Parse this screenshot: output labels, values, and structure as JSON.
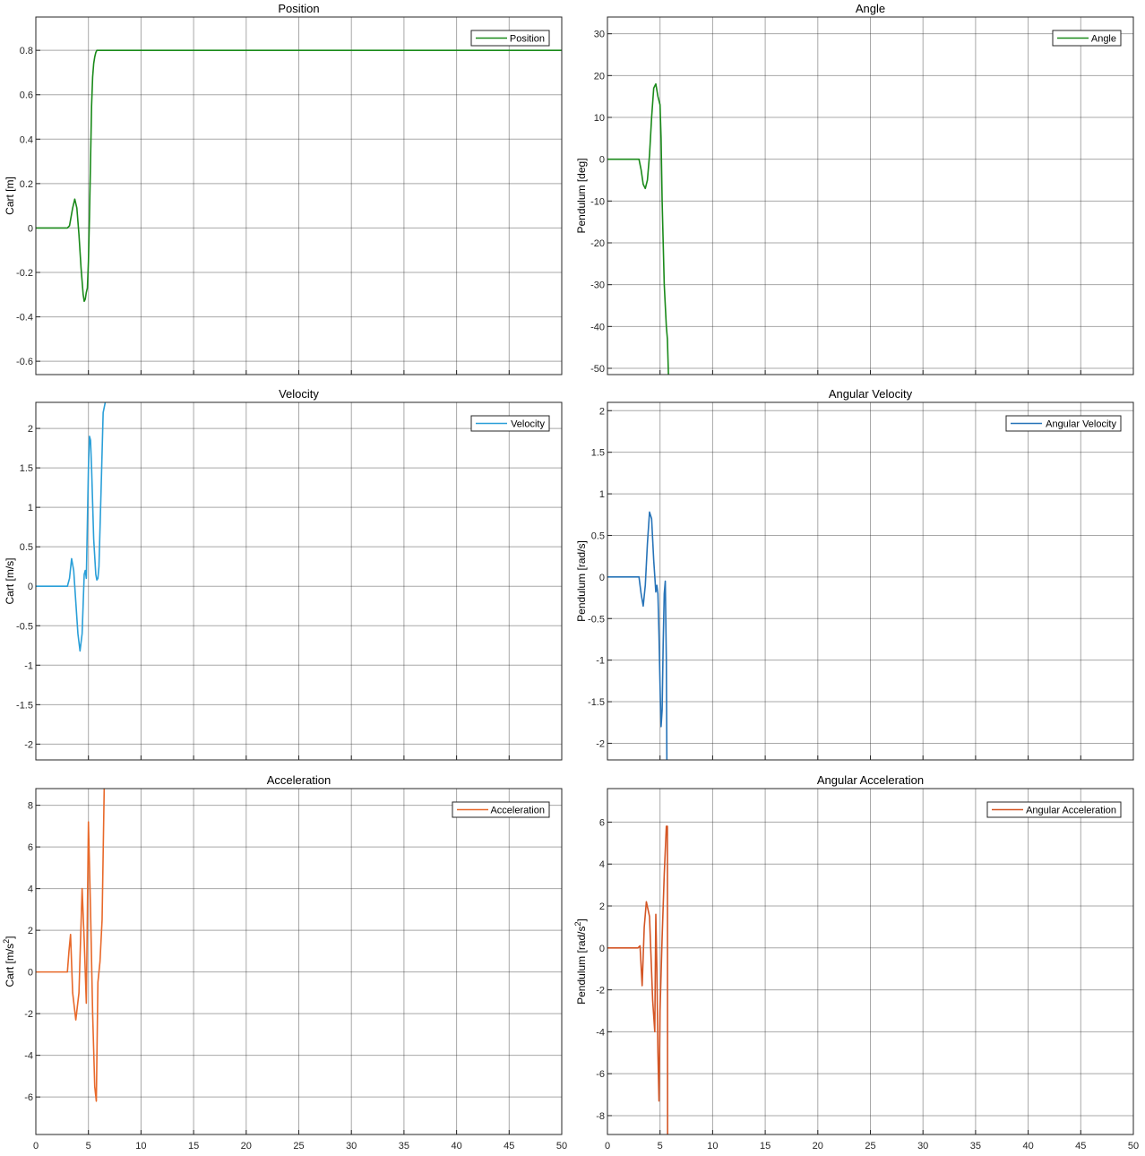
{
  "chart_data": [
    {
      "type": "line",
      "title": "Position",
      "ylabel": "Cart [m]",
      "ylabel_sup": "",
      "xlim": [
        0,
        50
      ],
      "ylim": [
        -0.66,
        0.95
      ],
      "xticks": [
        0,
        5,
        10,
        15,
        20,
        25,
        30,
        35,
        40,
        45,
        50
      ],
      "yticks": [
        -0.6,
        -0.4,
        -0.2,
        0,
        0.2,
        0.4,
        0.6,
        0.8
      ],
      "ytick_labels": [
        "-0.6",
        "-0.4",
        "-0.2",
        "0",
        "0.2",
        "0.4",
        "0.6",
        "0.8"
      ],
      "grid": true,
      "legend": "top-right",
      "series": [
        {
          "name": "Position",
          "color": "#1a8a1a",
          "x": [
            0,
            3.0,
            3.2,
            3.5,
            3.7,
            3.9,
            4.1,
            4.3,
            4.5,
            4.6,
            4.7,
            4.8,
            4.9,
            5.0,
            5.1,
            5.2,
            5.3,
            5.4,
            5.5,
            5.6,
            5.7,
            5.8,
            6.0,
            50
          ],
          "y": [
            0,
            0,
            0.01,
            0.09,
            0.13,
            0.09,
            -0.03,
            -0.18,
            -0.3,
            -0.33,
            -0.32,
            -0.29,
            -0.27,
            -0.15,
            0.05,
            0.3,
            0.55,
            0.68,
            0.74,
            0.77,
            0.79,
            0.8,
            0.8,
            0.8
          ]
        }
      ]
    },
    {
      "type": "line",
      "title": "Angle",
      "ylabel": "Pendulum [deg]",
      "ylabel_sup": "",
      "xlim": [
        0,
        50
      ],
      "ylim": [
        -51.5,
        34
      ],
      "xticks": [
        0,
        5,
        10,
        15,
        20,
        25,
        30,
        35,
        40,
        45,
        50
      ],
      "yticks": [
        -50,
        -40,
        -30,
        -20,
        -10,
        0,
        10,
        20,
        30
      ],
      "ytick_labels": [
        "-50",
        "-40",
        "-30",
        "-20",
        "-10",
        "0",
        "10",
        "20",
        "30"
      ],
      "grid": true,
      "legend": "top-right",
      "series": [
        {
          "name": "Angle",
          "color": "#1a8a1a",
          "x": [
            0,
            3.0,
            3.2,
            3.4,
            3.6,
            3.8,
            4.0,
            4.2,
            4.4,
            4.6,
            4.8,
            5.0,
            5.1,
            5.2,
            5.3,
            5.4,
            5.6,
            5.7,
            5.8
          ],
          "y": [
            0,
            0,
            -2.5,
            -6,
            -7,
            -5,
            1,
            10,
            17,
            18,
            15,
            13,
            5,
            -10,
            -20,
            -30,
            -40,
            -43,
            -51.5
          ]
        }
      ]
    },
    {
      "type": "line",
      "title": "Velocity",
      "ylabel": "Cart [m/s]",
      "ylabel_sup": "",
      "xlim": [
        0,
        50
      ],
      "ylim": [
        -2.2,
        2.33
      ],
      "xticks": [
        0,
        5,
        10,
        15,
        20,
        25,
        30,
        35,
        40,
        45,
        50
      ],
      "yticks": [
        -2,
        -1.5,
        -1,
        -0.5,
        0,
        0.5,
        1,
        1.5,
        2
      ],
      "ytick_labels": [
        "-2",
        "-1.5",
        "-1",
        "-0.5",
        "0",
        "0.5",
        "1",
        "1.5",
        "2"
      ],
      "grid": true,
      "legend": "top-right",
      "series": [
        {
          "name": "Velocity",
          "color": "#2a9fd8",
          "x": [
            0,
            3.0,
            3.2,
            3.4,
            3.6,
            3.8,
            4.0,
            4.2,
            4.4,
            4.6,
            4.7,
            4.8,
            4.9,
            5.0,
            5.1,
            5.2,
            5.3,
            5.5,
            5.7,
            5.8,
            5.9,
            6.0,
            6.2,
            6.4,
            6.6
          ],
          "y": [
            0,
            0,
            0.1,
            0.35,
            0.2,
            -0.2,
            -0.6,
            -0.82,
            -0.6,
            0.15,
            0.2,
            0.1,
            0.8,
            1.5,
            1.9,
            1.85,
            1.5,
            0.6,
            0.15,
            0.08,
            0.1,
            0.25,
            1.2,
            2.2,
            2.33
          ]
        }
      ]
    },
    {
      "type": "line",
      "title": "Angular Velocity",
      "ylabel": "Pendulum  [rad/s]",
      "ylabel_sup": "",
      "xlim": [
        0,
        50
      ],
      "ylim": [
        -2.2,
        2.1
      ],
      "xticks": [
        0,
        5,
        10,
        15,
        20,
        25,
        30,
        35,
        40,
        45,
        50
      ],
      "yticks": [
        -2,
        -1.5,
        -1,
        -0.5,
        0,
        0.5,
        1,
        1.5,
        2
      ],
      "ytick_labels": [
        "-2",
        "-1.5",
        "-1",
        "-0.5",
        "0",
        "0.5",
        "1",
        "1.5",
        "2"
      ],
      "grid": true,
      "legend": "top-right",
      "series": [
        {
          "name": "Angular Velocity",
          "color": "#2673b8",
          "x": [
            0,
            3.0,
            3.2,
            3.4,
            3.6,
            3.8,
            4.0,
            4.2,
            4.4,
            4.6,
            4.7,
            4.8,
            4.9,
            5.0,
            5.1,
            5.2,
            5.3,
            5.4,
            5.5,
            5.6,
            5.65,
            5.7
          ],
          "y": [
            0,
            0,
            -0.2,
            -0.35,
            -0.1,
            0.4,
            0.78,
            0.7,
            0.2,
            -0.18,
            -0.1,
            -0.2,
            -0.7,
            -1.3,
            -1.8,
            -1.6,
            -0.8,
            -0.2,
            -0.05,
            -1.0,
            -2.2,
            -2.2
          ]
        }
      ]
    },
    {
      "type": "line",
      "title": "Acceleration",
      "ylabel": "Cart [m/s",
      "ylabel_sup": "2",
      "ylabel_end": "]",
      "xlim": [
        0,
        50
      ],
      "ylim": [
        -7.8,
        8.8
      ],
      "xticks": [
        0,
        5,
        10,
        15,
        20,
        25,
        30,
        35,
        40,
        45,
        50
      ],
      "xtick_labels": [
        "0",
        "5",
        "10",
        "15",
        "20",
        "25",
        "30",
        "35",
        "40",
        "45",
        "50"
      ],
      "yticks": [
        -6,
        -4,
        -2,
        0,
        2,
        4,
        6,
        8
      ],
      "ytick_labels": [
        "-6",
        "-4",
        "-2",
        "0",
        "2",
        "4",
        "6",
        "8"
      ],
      "grid": true,
      "legend": "top-right",
      "series": [
        {
          "name": "Acceleration",
          "color": "#e8692a",
          "x": [
            0,
            3.0,
            3.15,
            3.3,
            3.5,
            3.8,
            4.1,
            4.4,
            4.6,
            4.8,
            5.0,
            5.2,
            5.4,
            5.6,
            5.75,
            5.9,
            6.1,
            6.3,
            6.5
          ],
          "y": [
            0,
            0,
            1.0,
            1.8,
            -1.0,
            -2.3,
            -1.0,
            4.0,
            1.5,
            -1.5,
            7.2,
            3.0,
            -2.0,
            -5.5,
            -6.2,
            -0.5,
            0.5,
            2.5,
            8.8
          ]
        }
      ]
    },
    {
      "type": "line",
      "title": "Angular Acceleration",
      "ylabel": "Pendulum [rad/s",
      "ylabel_sup": "2",
      "ylabel_end": "]",
      "xlim": [
        0,
        50
      ],
      "ylim": [
        -8.9,
        7.6
      ],
      "xticks": [
        0,
        5,
        10,
        15,
        20,
        25,
        30,
        35,
        40,
        45,
        50
      ],
      "xtick_labels": [
        "0",
        "5",
        "10",
        "15",
        "20",
        "25",
        "30",
        "35",
        "40",
        "45",
        "50"
      ],
      "yticks": [
        -8,
        -6,
        -4,
        -2,
        0,
        2,
        4,
        6
      ],
      "ytick_labels": [
        "-8",
        "-6",
        "-4",
        "-2",
        "0",
        "2",
        "4",
        "6"
      ],
      "grid": true,
      "legend": "top-right",
      "series": [
        {
          "name": "Angular Acceleration",
          "color": "#d45524",
          "x": [
            0,
            2.9,
            3.1,
            3.3,
            3.5,
            3.7,
            4.0,
            4.3,
            4.5,
            4.6,
            4.7,
            4.8,
            4.9,
            5.0,
            5.2,
            5.4,
            5.6,
            5.7,
            5.72
          ],
          "y": [
            0,
            0,
            0.1,
            -1.8,
            1.0,
            2.2,
            1.5,
            -2.5,
            -4.0,
            1.6,
            -1.0,
            -5.0,
            -7.3,
            -3.0,
            0.5,
            3.5,
            5.8,
            5.8,
            -8.9
          ]
        }
      ]
    }
  ]
}
